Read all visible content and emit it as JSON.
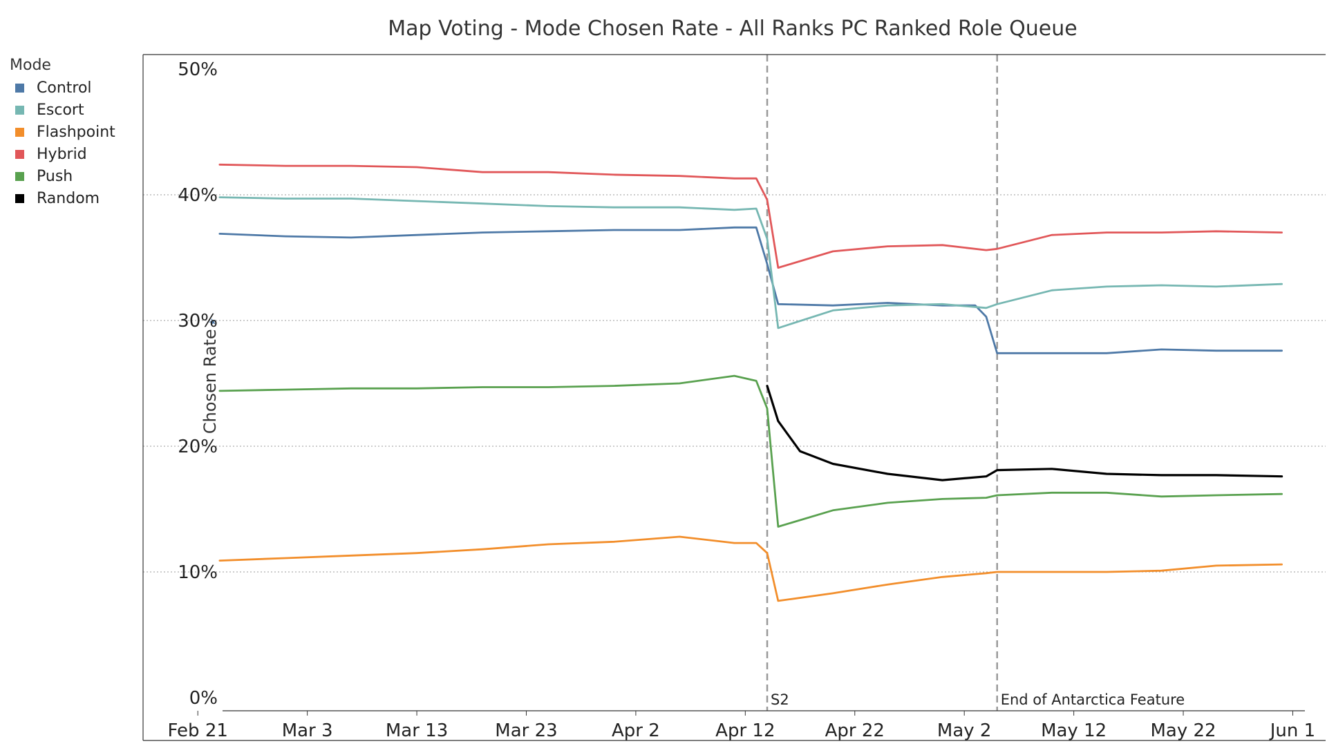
{
  "chart_data": {
    "type": "line",
    "title": "Map Voting - Mode Chosen Rate - All Ranks PC Ranked Role Queue",
    "ylabel": "Chosen Rate",
    "ylim": [
      0,
      50
    ],
    "xlim": [
      "2023-02-16",
      "2023-06-04"
    ],
    "y_ticks": [
      "0%",
      "10%",
      "20%",
      "30%",
      "40%",
      "50%"
    ],
    "y_tick_values": [
      0,
      10,
      20,
      30,
      40,
      50
    ],
    "x_ticks": [
      "Feb 21",
      "Mar 3",
      "Mar 13",
      "Mar 23",
      "Apr 2",
      "Apr 12",
      "Apr 22",
      "May 2",
      "May 12",
      "May 22",
      "Jun 1"
    ],
    "x_tick_dates": [
      "2023-02-21",
      "2023-03-03",
      "2023-03-13",
      "2023-03-23",
      "2023-04-02",
      "2023-04-12",
      "2023-04-22",
      "2023-05-02",
      "2023-05-12",
      "2023-05-22",
      "2023-06-01"
    ],
    "grid": "horizontal dotted",
    "legend": {
      "title": "Mode",
      "placement": "left"
    },
    "annotations": [
      {
        "label": "S2",
        "date": "2023-04-14"
      },
      {
        "label": "End of Antarctica Feature",
        "date": "2023-05-05"
      }
    ],
    "series": [
      {
        "name": "Control",
        "color": "#4e79a7",
        "points": [
          [
            "2023-02-23",
            36.9
          ],
          [
            "2023-03-01",
            36.7
          ],
          [
            "2023-03-07",
            36.6
          ],
          [
            "2023-03-13",
            36.8
          ],
          [
            "2023-03-19",
            37.0
          ],
          [
            "2023-03-25",
            37.1
          ],
          [
            "2023-03-31",
            37.2
          ],
          [
            "2023-04-06",
            37.2
          ],
          [
            "2023-04-11",
            37.4
          ],
          [
            "2023-04-13",
            37.4
          ],
          [
            "2023-04-14",
            34.5
          ],
          [
            "2023-04-15",
            31.3
          ],
          [
            "2023-04-20",
            31.2
          ],
          [
            "2023-04-25",
            31.4
          ],
          [
            "2023-04-30",
            31.2
          ],
          [
            "2023-05-03",
            31.2
          ],
          [
            "2023-05-04",
            30.3
          ],
          [
            "2023-05-05",
            27.4
          ],
          [
            "2023-05-10",
            27.4
          ],
          [
            "2023-05-15",
            27.4
          ],
          [
            "2023-05-20",
            27.7
          ],
          [
            "2023-05-25",
            27.6
          ],
          [
            "2023-05-31",
            27.6
          ]
        ]
      },
      {
        "name": "Escort",
        "color": "#76b7b2",
        "points": [
          [
            "2023-02-23",
            39.8
          ],
          [
            "2023-03-01",
            39.7
          ],
          [
            "2023-03-07",
            39.7
          ],
          [
            "2023-03-13",
            39.5
          ],
          [
            "2023-03-19",
            39.3
          ],
          [
            "2023-03-25",
            39.1
          ],
          [
            "2023-03-31",
            39.0
          ],
          [
            "2023-04-06",
            39.0
          ],
          [
            "2023-04-11",
            38.8
          ],
          [
            "2023-04-13",
            38.9
          ],
          [
            "2023-04-14",
            36.5
          ],
          [
            "2023-04-15",
            29.4
          ],
          [
            "2023-04-20",
            30.8
          ],
          [
            "2023-04-25",
            31.2
          ],
          [
            "2023-04-30",
            31.3
          ],
          [
            "2023-05-04",
            31.0
          ],
          [
            "2023-05-05",
            31.3
          ],
          [
            "2023-05-10",
            32.4
          ],
          [
            "2023-05-15",
            32.7
          ],
          [
            "2023-05-20",
            32.8
          ],
          [
            "2023-05-25",
            32.7
          ],
          [
            "2023-05-31",
            32.9
          ]
        ]
      },
      {
        "name": "Flashpoint",
        "color": "#f28e2b",
        "points": [
          [
            "2023-02-23",
            10.9
          ],
          [
            "2023-03-01",
            11.1
          ],
          [
            "2023-03-07",
            11.3
          ],
          [
            "2023-03-13",
            11.5
          ],
          [
            "2023-03-19",
            11.8
          ],
          [
            "2023-03-25",
            12.2
          ],
          [
            "2023-03-31",
            12.4
          ],
          [
            "2023-04-06",
            12.8
          ],
          [
            "2023-04-11",
            12.3
          ],
          [
            "2023-04-13",
            12.3
          ],
          [
            "2023-04-14",
            11.5
          ],
          [
            "2023-04-15",
            7.7
          ],
          [
            "2023-04-20",
            8.3
          ],
          [
            "2023-04-25",
            9.0
          ],
          [
            "2023-04-30",
            9.6
          ],
          [
            "2023-05-04",
            9.9
          ],
          [
            "2023-05-05",
            10.0
          ],
          [
            "2023-05-10",
            10.0
          ],
          [
            "2023-05-15",
            10.0
          ],
          [
            "2023-05-20",
            10.1
          ],
          [
            "2023-05-25",
            10.5
          ],
          [
            "2023-05-31",
            10.6
          ]
        ]
      },
      {
        "name": "Hybrid",
        "color": "#e15759",
        "points": [
          [
            "2023-02-23",
            42.4
          ],
          [
            "2023-03-01",
            42.3
          ],
          [
            "2023-03-07",
            42.3
          ],
          [
            "2023-03-13",
            42.2
          ],
          [
            "2023-03-19",
            41.8
          ],
          [
            "2023-03-25",
            41.8
          ],
          [
            "2023-03-31",
            41.6
          ],
          [
            "2023-04-06",
            41.5
          ],
          [
            "2023-04-11",
            41.3
          ],
          [
            "2023-04-13",
            41.3
          ],
          [
            "2023-04-14",
            39.6
          ],
          [
            "2023-04-15",
            34.2
          ],
          [
            "2023-04-20",
            35.5
          ],
          [
            "2023-04-25",
            35.9
          ],
          [
            "2023-04-30",
            36.0
          ],
          [
            "2023-05-04",
            35.6
          ],
          [
            "2023-05-05",
            35.7
          ],
          [
            "2023-05-10",
            36.8
          ],
          [
            "2023-05-15",
            37.0
          ],
          [
            "2023-05-20",
            37.0
          ],
          [
            "2023-05-25",
            37.1
          ],
          [
            "2023-05-31",
            37.0
          ]
        ]
      },
      {
        "name": "Push",
        "color": "#59a14f",
        "points": [
          [
            "2023-02-23",
            24.4
          ],
          [
            "2023-03-01",
            24.5
          ],
          [
            "2023-03-07",
            24.6
          ],
          [
            "2023-03-13",
            24.6
          ],
          [
            "2023-03-19",
            24.7
          ],
          [
            "2023-03-25",
            24.7
          ],
          [
            "2023-03-31",
            24.8
          ],
          [
            "2023-04-06",
            25.0
          ],
          [
            "2023-04-11",
            25.6
          ],
          [
            "2023-04-13",
            25.2
          ],
          [
            "2023-04-14",
            23.0
          ],
          [
            "2023-04-15",
            13.6
          ],
          [
            "2023-04-20",
            14.9
          ],
          [
            "2023-04-25",
            15.5
          ],
          [
            "2023-04-30",
            15.8
          ],
          [
            "2023-05-04",
            15.9
          ],
          [
            "2023-05-05",
            16.1
          ],
          [
            "2023-05-10",
            16.3
          ],
          [
            "2023-05-15",
            16.3
          ],
          [
            "2023-05-20",
            16.0
          ],
          [
            "2023-05-25",
            16.1
          ],
          [
            "2023-05-31",
            16.2
          ]
        ]
      },
      {
        "name": "Random",
        "color": "#000000",
        "points": [
          [
            "2023-04-14",
            24.8
          ],
          [
            "2023-04-15",
            22.0
          ],
          [
            "2023-04-17",
            19.6
          ],
          [
            "2023-04-20",
            18.6
          ],
          [
            "2023-04-25",
            17.8
          ],
          [
            "2023-04-30",
            17.3
          ],
          [
            "2023-05-04",
            17.6
          ],
          [
            "2023-05-05",
            18.1
          ],
          [
            "2023-05-10",
            18.2
          ],
          [
            "2023-05-15",
            17.8
          ],
          [
            "2023-05-20",
            17.7
          ],
          [
            "2023-05-25",
            17.7
          ],
          [
            "2023-05-31",
            17.6
          ]
        ]
      }
    ]
  }
}
